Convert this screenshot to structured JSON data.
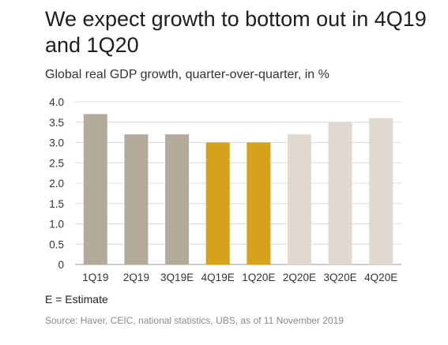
{
  "title": "We expect growth to bottom out in 4Q19 and 1Q20",
  "subtitle": "Global real GDP growth, quarter-over-quarter, in %",
  "note": "E = Estimate",
  "source": "Source: Haver, CEIC, national statistics, UBS, as of 11 November 2019",
  "chart_data": {
    "type": "bar",
    "categories": [
      "1Q19",
      "2Q19",
      "3Q19E",
      "4Q19E",
      "1Q20E",
      "2Q20E",
      "3Q20E",
      "4Q20E"
    ],
    "values": [
      3.7,
      3.2,
      3.2,
      3.0,
      3.0,
      3.2,
      3.5,
      3.6
    ],
    "ylim": [
      0,
      4.0
    ],
    "yticks": [
      "0",
      "0.5",
      "1.0",
      "1.5",
      "2.0",
      "2.5",
      "3.0",
      "3.5",
      "4.0"
    ],
    "grid": true,
    "bar_colors": [
      "#b3aa9c",
      "#b3aa9c",
      "#b3aa9c",
      "#d6a21c",
      "#d6a21c",
      "#e1d9cf",
      "#e1d9cf",
      "#e1d9cf"
    ]
  }
}
